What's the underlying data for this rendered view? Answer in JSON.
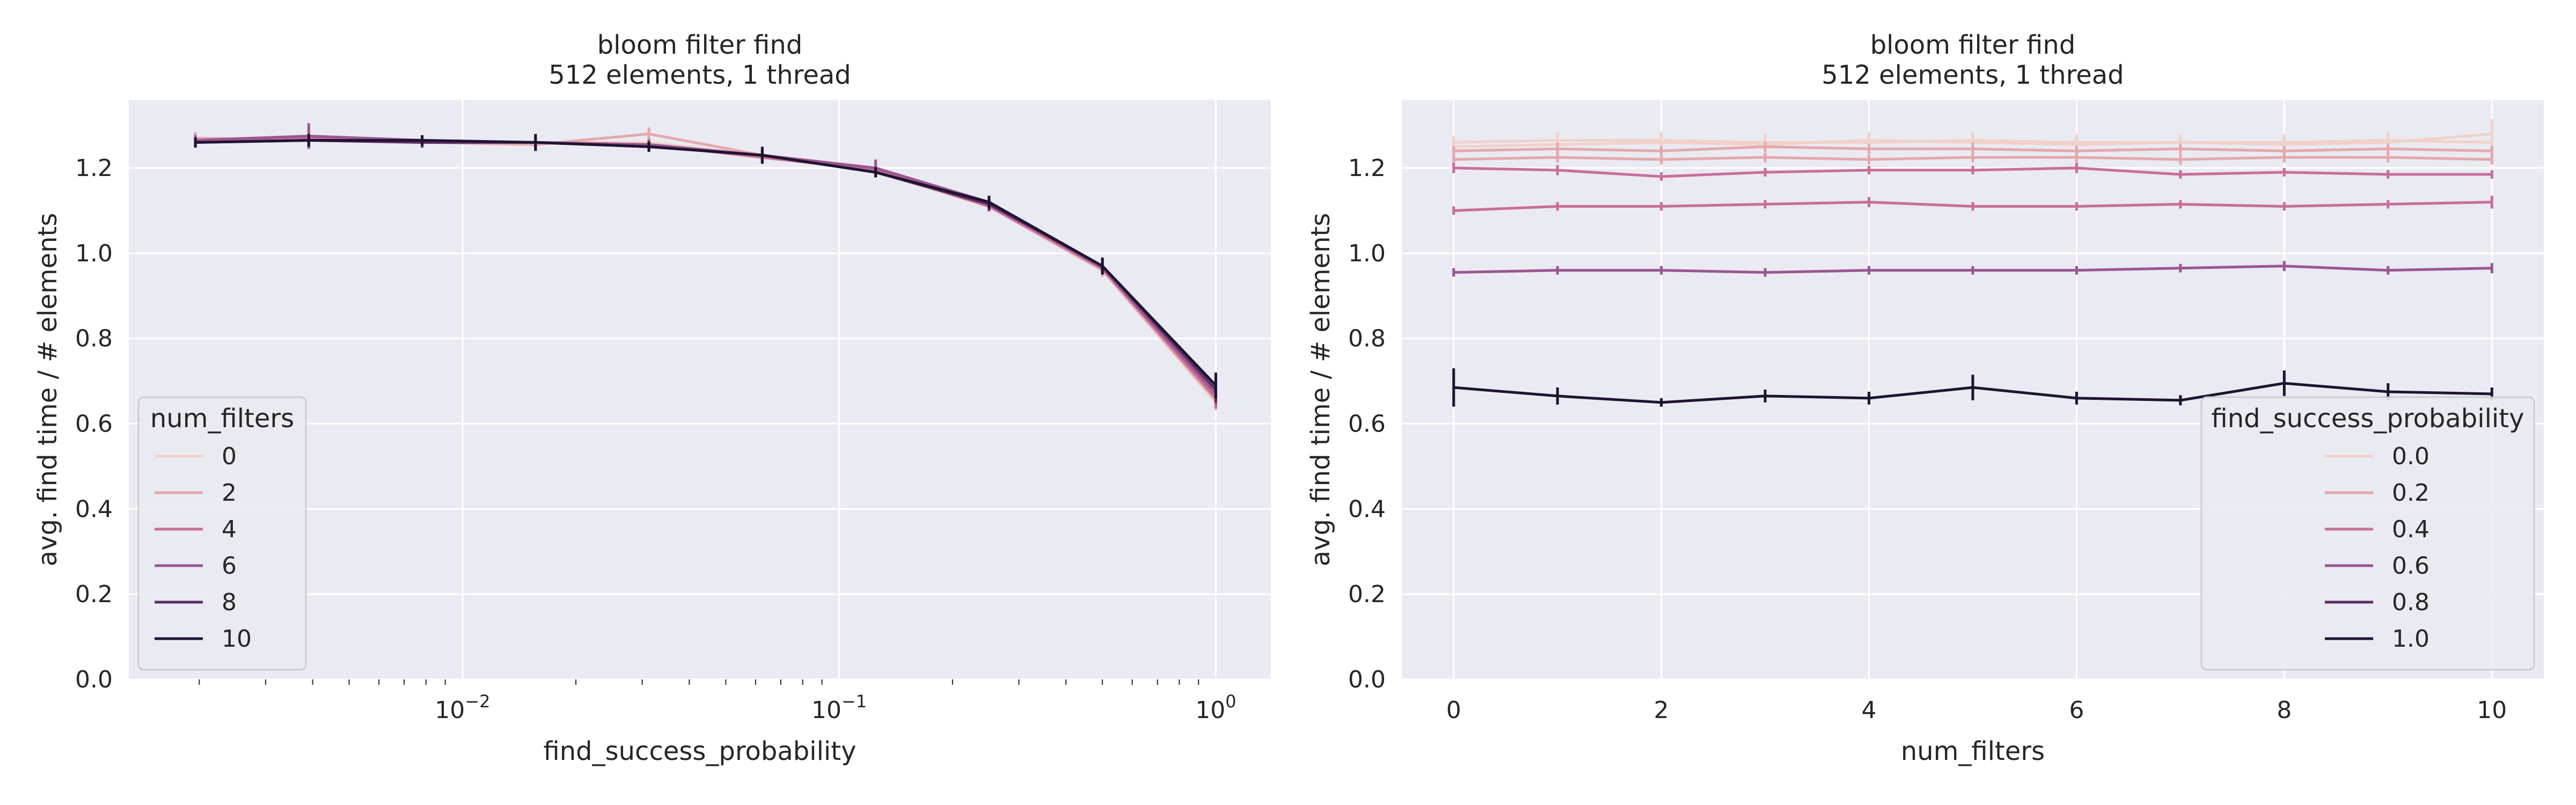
{
  "colors": {
    "background": "#eaeaf2",
    "grid": "#ffffff",
    "palette": [
      "#f1d1c9",
      "#e4a8ac",
      "#c86f98",
      "#9b5691",
      "#5c2d64",
      "#1e1432"
    ]
  },
  "chart_data": [
    {
      "type": "line",
      "title": "bloom filter find",
      "subtitle": "512 elements, 1 thread",
      "xlabel": "find_success_probability",
      "ylabel": "avg. find time / # elements",
      "xscale": "log",
      "xlim": [
        0.0013,
        1.4
      ],
      "ylim": [
        0.0,
        1.36
      ],
      "x_ticks": [
        0.01,
        0.1,
        1
      ],
      "x_tick_labels": [
        {
          "base": "10",
          "exp": "−2"
        },
        {
          "base": "10",
          "exp": "−1"
        },
        {
          "base": "10",
          "exp": "0"
        }
      ],
      "y_ticks": [
        "0.0",
        "0.2",
        "0.4",
        "0.6",
        "0.8",
        "1.0",
        "1.2"
      ],
      "grid": true,
      "legend": {
        "title": "num_filters",
        "position": "lower-left"
      },
      "x": [
        0.001953125,
        0.00390625,
        0.0078125,
        0.015625,
        0.03125,
        0.0625,
        0.125,
        0.25,
        0.5,
        1.0
      ],
      "series": [
        {
          "name": "0",
          "values": [
            1.27,
            1.27,
            1.26,
            1.26,
            1.26,
            1.23,
            1.19,
            1.11,
            0.96,
            0.65
          ],
          "err": [
            0.012,
            0.012,
            0.01,
            0.012,
            0.01,
            0.012,
            0.012,
            0.012,
            0.015,
            0.02
          ]
        },
        {
          "name": "2",
          "values": [
            1.27,
            1.265,
            1.26,
            1.255,
            1.28,
            1.23,
            1.2,
            1.11,
            0.96,
            0.655
          ],
          "err": [
            0.015,
            0.015,
            0.012,
            0.012,
            0.015,
            0.012,
            0.012,
            0.012,
            0.015,
            0.02
          ]
        },
        {
          "name": "4",
          "values": [
            1.265,
            1.27,
            1.26,
            1.26,
            1.255,
            1.225,
            1.195,
            1.11,
            0.965,
            0.66
          ],
          "err": [
            0.012,
            0.02,
            0.012,
            0.012,
            0.012,
            0.012,
            0.015,
            0.012,
            0.015,
            0.025
          ]
        },
        {
          "name": "6",
          "values": [
            1.265,
            1.275,
            1.265,
            1.26,
            1.255,
            1.23,
            1.2,
            1.12,
            0.965,
            0.67
          ],
          "err": [
            0.012,
            0.03,
            0.012,
            0.015,
            0.012,
            0.012,
            0.02,
            0.012,
            0.015,
            0.025
          ]
        },
        {
          "name": "8",
          "values": [
            1.26,
            1.265,
            1.26,
            1.26,
            1.25,
            1.23,
            1.19,
            1.115,
            0.97,
            0.68
          ],
          "err": [
            0.012,
            0.015,
            0.012,
            0.015,
            0.012,
            0.015,
            0.012,
            0.015,
            0.015,
            0.03
          ]
        },
        {
          "name": "10",
          "values": [
            1.26,
            1.265,
            1.265,
            1.26,
            1.25,
            1.23,
            1.19,
            1.12,
            0.97,
            0.69
          ],
          "err": [
            0.012,
            0.015,
            0.012,
            0.02,
            0.012,
            0.02,
            0.012,
            0.015,
            0.02,
            0.03
          ]
        }
      ]
    },
    {
      "type": "line",
      "title": "bloom filter find",
      "subtitle": "512 elements, 1 thread",
      "xlabel": "num_filters",
      "ylabel": "avg. find time / # elements",
      "xscale": "linear",
      "xlim": [
        -0.5,
        10.5
      ],
      "ylim": [
        0.0,
        1.36
      ],
      "x_ticks": [
        0,
        2,
        4,
        6,
        8,
        10
      ],
      "y_ticks": [
        "0.0",
        "0.2",
        "0.4",
        "0.6",
        "0.8",
        "1.0",
        "1.2"
      ],
      "grid": true,
      "legend": {
        "title": "find_success_probability",
        "position": "lower-right"
      },
      "x": [
        0,
        1,
        2,
        3,
        4,
        5,
        6,
        7,
        8,
        9,
        10
      ],
      "series": [
        {
          "name": "0.0",
          "values": [
            1.25,
            1.255,
            1.26,
            1.255,
            1.265,
            1.26,
            1.255,
            1.26,
            1.255,
            1.26,
            1.28
          ],
          "err": [
            0.015,
            0.02,
            0.02,
            0.015,
            0.02,
            0.02,
            0.015,
            0.02,
            0.015,
            0.02,
            0.035
          ]
        },
        {
          "name": "",
          "values": [
            1.26,
            1.265,
            1.265,
            1.26,
            1.26,
            1.265,
            1.26,
            1.26,
            1.26,
            1.265,
            1.26
          ],
          "err": [
            0.015,
            0.02,
            0.02,
            0.02,
            0.02,
            0.02,
            0.02,
            0.02,
            0.02,
            0.02,
            0.02
          ]
        },
        {
          "name": "",
          "values": [
            1.24,
            1.245,
            1.24,
            1.25,
            1.245,
            1.245,
            1.24,
            1.245,
            1.24,
            1.245,
            1.24
          ],
          "err": [
            0.012,
            0.015,
            0.012,
            0.012,
            0.012,
            0.015,
            0.012,
            0.012,
            0.012,
            0.012,
            0.012
          ]
        },
        {
          "name": "0.2",
          "values": [
            1.22,
            1.225,
            1.22,
            1.225,
            1.22,
            1.225,
            1.225,
            1.22,
            1.225,
            1.225,
            1.22
          ],
          "err": [
            0.012,
            0.012,
            0.012,
            0.012,
            0.012,
            0.012,
            0.012,
            0.012,
            0.012,
            0.012,
            0.012
          ]
        },
        {
          "name": "",
          "values": [
            1.2,
            1.195,
            1.18,
            1.19,
            1.195,
            1.195,
            1.2,
            1.185,
            1.19,
            1.185,
            1.185
          ],
          "err": [
            0.012,
            0.012,
            0.01,
            0.01,
            0.01,
            0.01,
            0.012,
            0.01,
            0.01,
            0.01,
            0.01
          ]
        },
        {
          "name": "0.4",
          "values": [
            1.1,
            1.11,
            1.11,
            1.115,
            1.12,
            1.11,
            1.11,
            1.115,
            1.11,
            1.115,
            1.12
          ],
          "err": [
            0.01,
            0.01,
            0.01,
            0.01,
            0.012,
            0.01,
            0.01,
            0.01,
            0.01,
            0.01,
            0.015
          ]
        },
        {
          "name": "0.6",
          "values": [
            0.955,
            0.96,
            0.96,
            0.955,
            0.96,
            0.96,
            0.96,
            0.965,
            0.97,
            0.96,
            0.965
          ],
          "err": [
            0.01,
            0.01,
            0.01,
            0.01,
            0.01,
            0.01,
            0.01,
            0.01,
            0.012,
            0.01,
            0.012
          ]
        },
        {
          "name": "1.0",
          "values": [
            0.685,
            0.665,
            0.65,
            0.665,
            0.66,
            0.685,
            0.66,
            0.655,
            0.695,
            0.675,
            0.67
          ],
          "err": [
            0.045,
            0.02,
            0.01,
            0.015,
            0.015,
            0.03,
            0.015,
            0.012,
            0.03,
            0.02,
            0.015
          ]
        }
      ],
      "legend_entries": [
        "0.0",
        "0.2",
        "0.4",
        "0.6",
        "0.8",
        "1.0"
      ]
    }
  ]
}
